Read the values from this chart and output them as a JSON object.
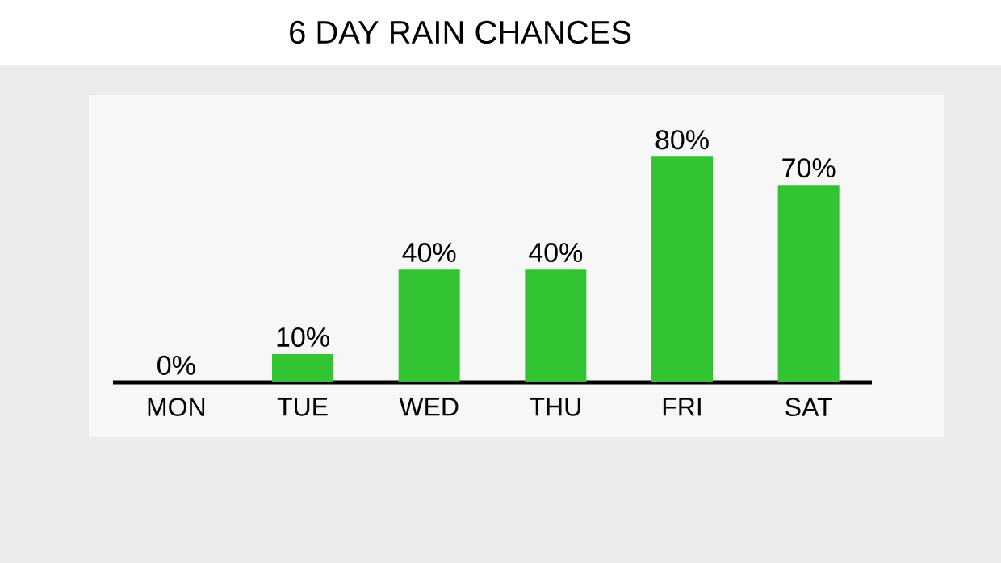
{
  "chart_data": {
    "type": "bar",
    "title": "6 DAY RAIN CHANCES",
    "categories": [
      "MON",
      "TUE",
      "WED",
      "THU",
      "FRI",
      "SAT"
    ],
    "values": [
      0,
      10,
      40,
      40,
      80,
      70
    ],
    "value_labels": [
      "0%",
      "10%",
      "40%",
      "40%",
      "80%",
      "70%"
    ],
    "color": "#33c433"
  }
}
